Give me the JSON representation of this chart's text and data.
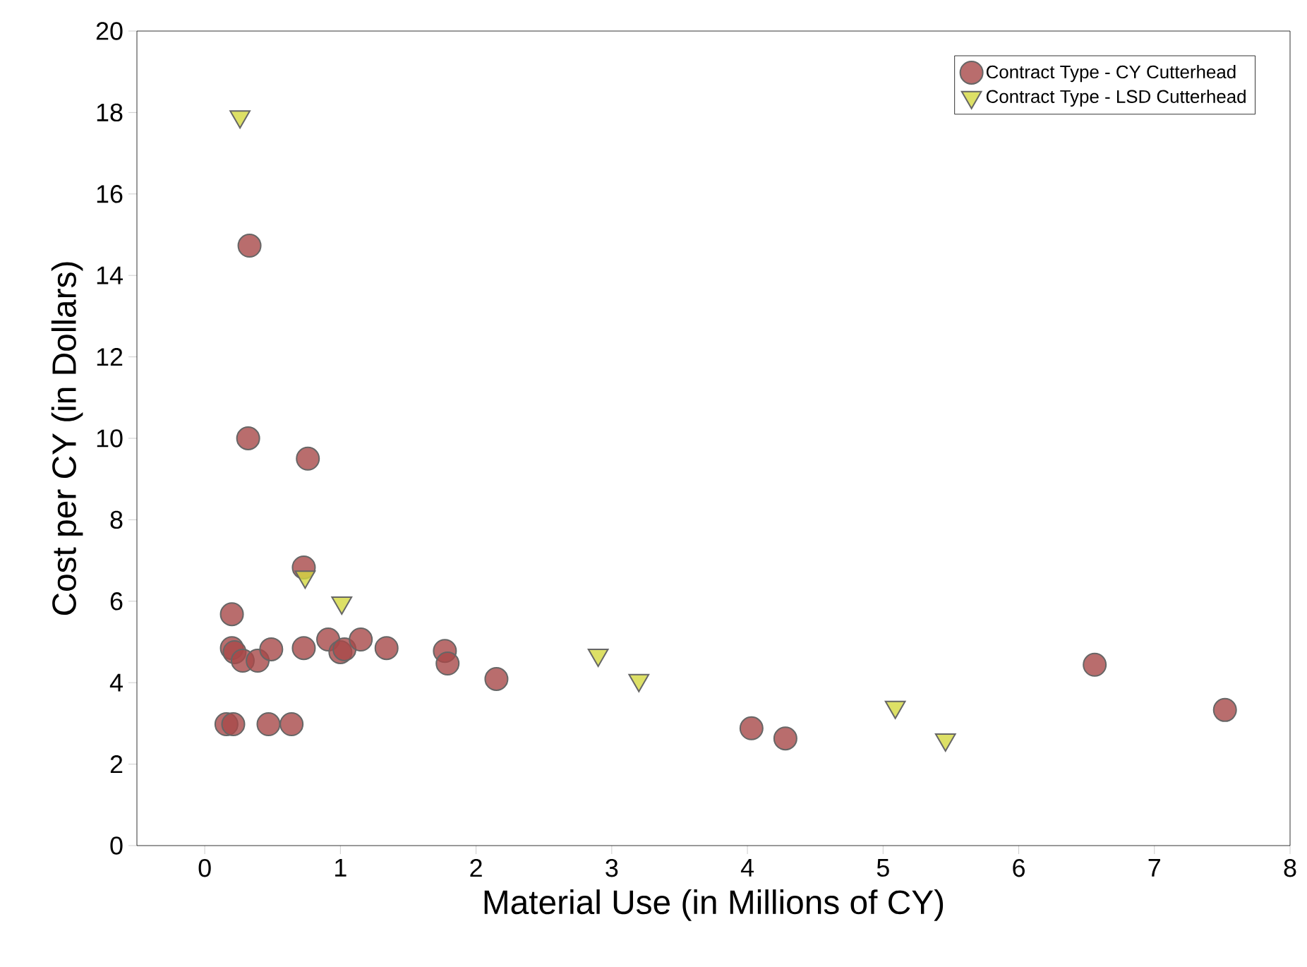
{
  "chart_data": {
    "type": "scatter",
    "xlabel": "Material Use (in Millions of CY)",
    "ylabel": "Cost per CY (in Dollars)",
    "xlim": [
      -0.5,
      8
    ],
    "ylim": [
      0,
      20
    ],
    "xticks": [
      0,
      1,
      2,
      3,
      4,
      5,
      6,
      7,
      8
    ],
    "yticks": [
      0,
      2,
      4,
      6,
      8,
      10,
      12,
      14,
      16,
      18,
      20
    ],
    "grid": false,
    "legend": "top right",
    "series": [
      {
        "name": "Contract Type - CY Cutterhead",
        "color": "#a84848",
        "marker": "circle",
        "x": [
          0.33,
          0.32,
          0.76,
          0.73,
          0.2,
          0.2,
          0.22,
          0.28,
          0.39,
          0.49,
          0.73,
          0.91,
          1.0,
          1.03,
          1.15,
          1.34,
          1.77,
          1.79,
          2.15,
          0.16,
          0.21,
          0.47,
          0.64,
          4.03,
          4.28,
          6.56,
          7.52
        ],
        "values": [
          14.73,
          10.0,
          9.5,
          6.83,
          5.68,
          4.85,
          4.75,
          4.54,
          4.54,
          4.82,
          4.85,
          5.06,
          4.75,
          4.82,
          5.06,
          4.85,
          4.78,
          4.47,
          4.09,
          2.98,
          2.98,
          2.98,
          2.98,
          2.88,
          2.63,
          4.44,
          3.33
        ]
      },
      {
        "name": "Contract Type - LSD Cutterhead",
        "color": "#d4d840",
        "marker": "triangle",
        "x": [
          0.26,
          0.74,
          1.01,
          2.9,
          3.2,
          5.09,
          5.46
        ],
        "values": [
          17.9,
          6.6,
          5.96,
          4.68,
          4.06,
          3.4,
          2.6
        ]
      }
    ]
  }
}
